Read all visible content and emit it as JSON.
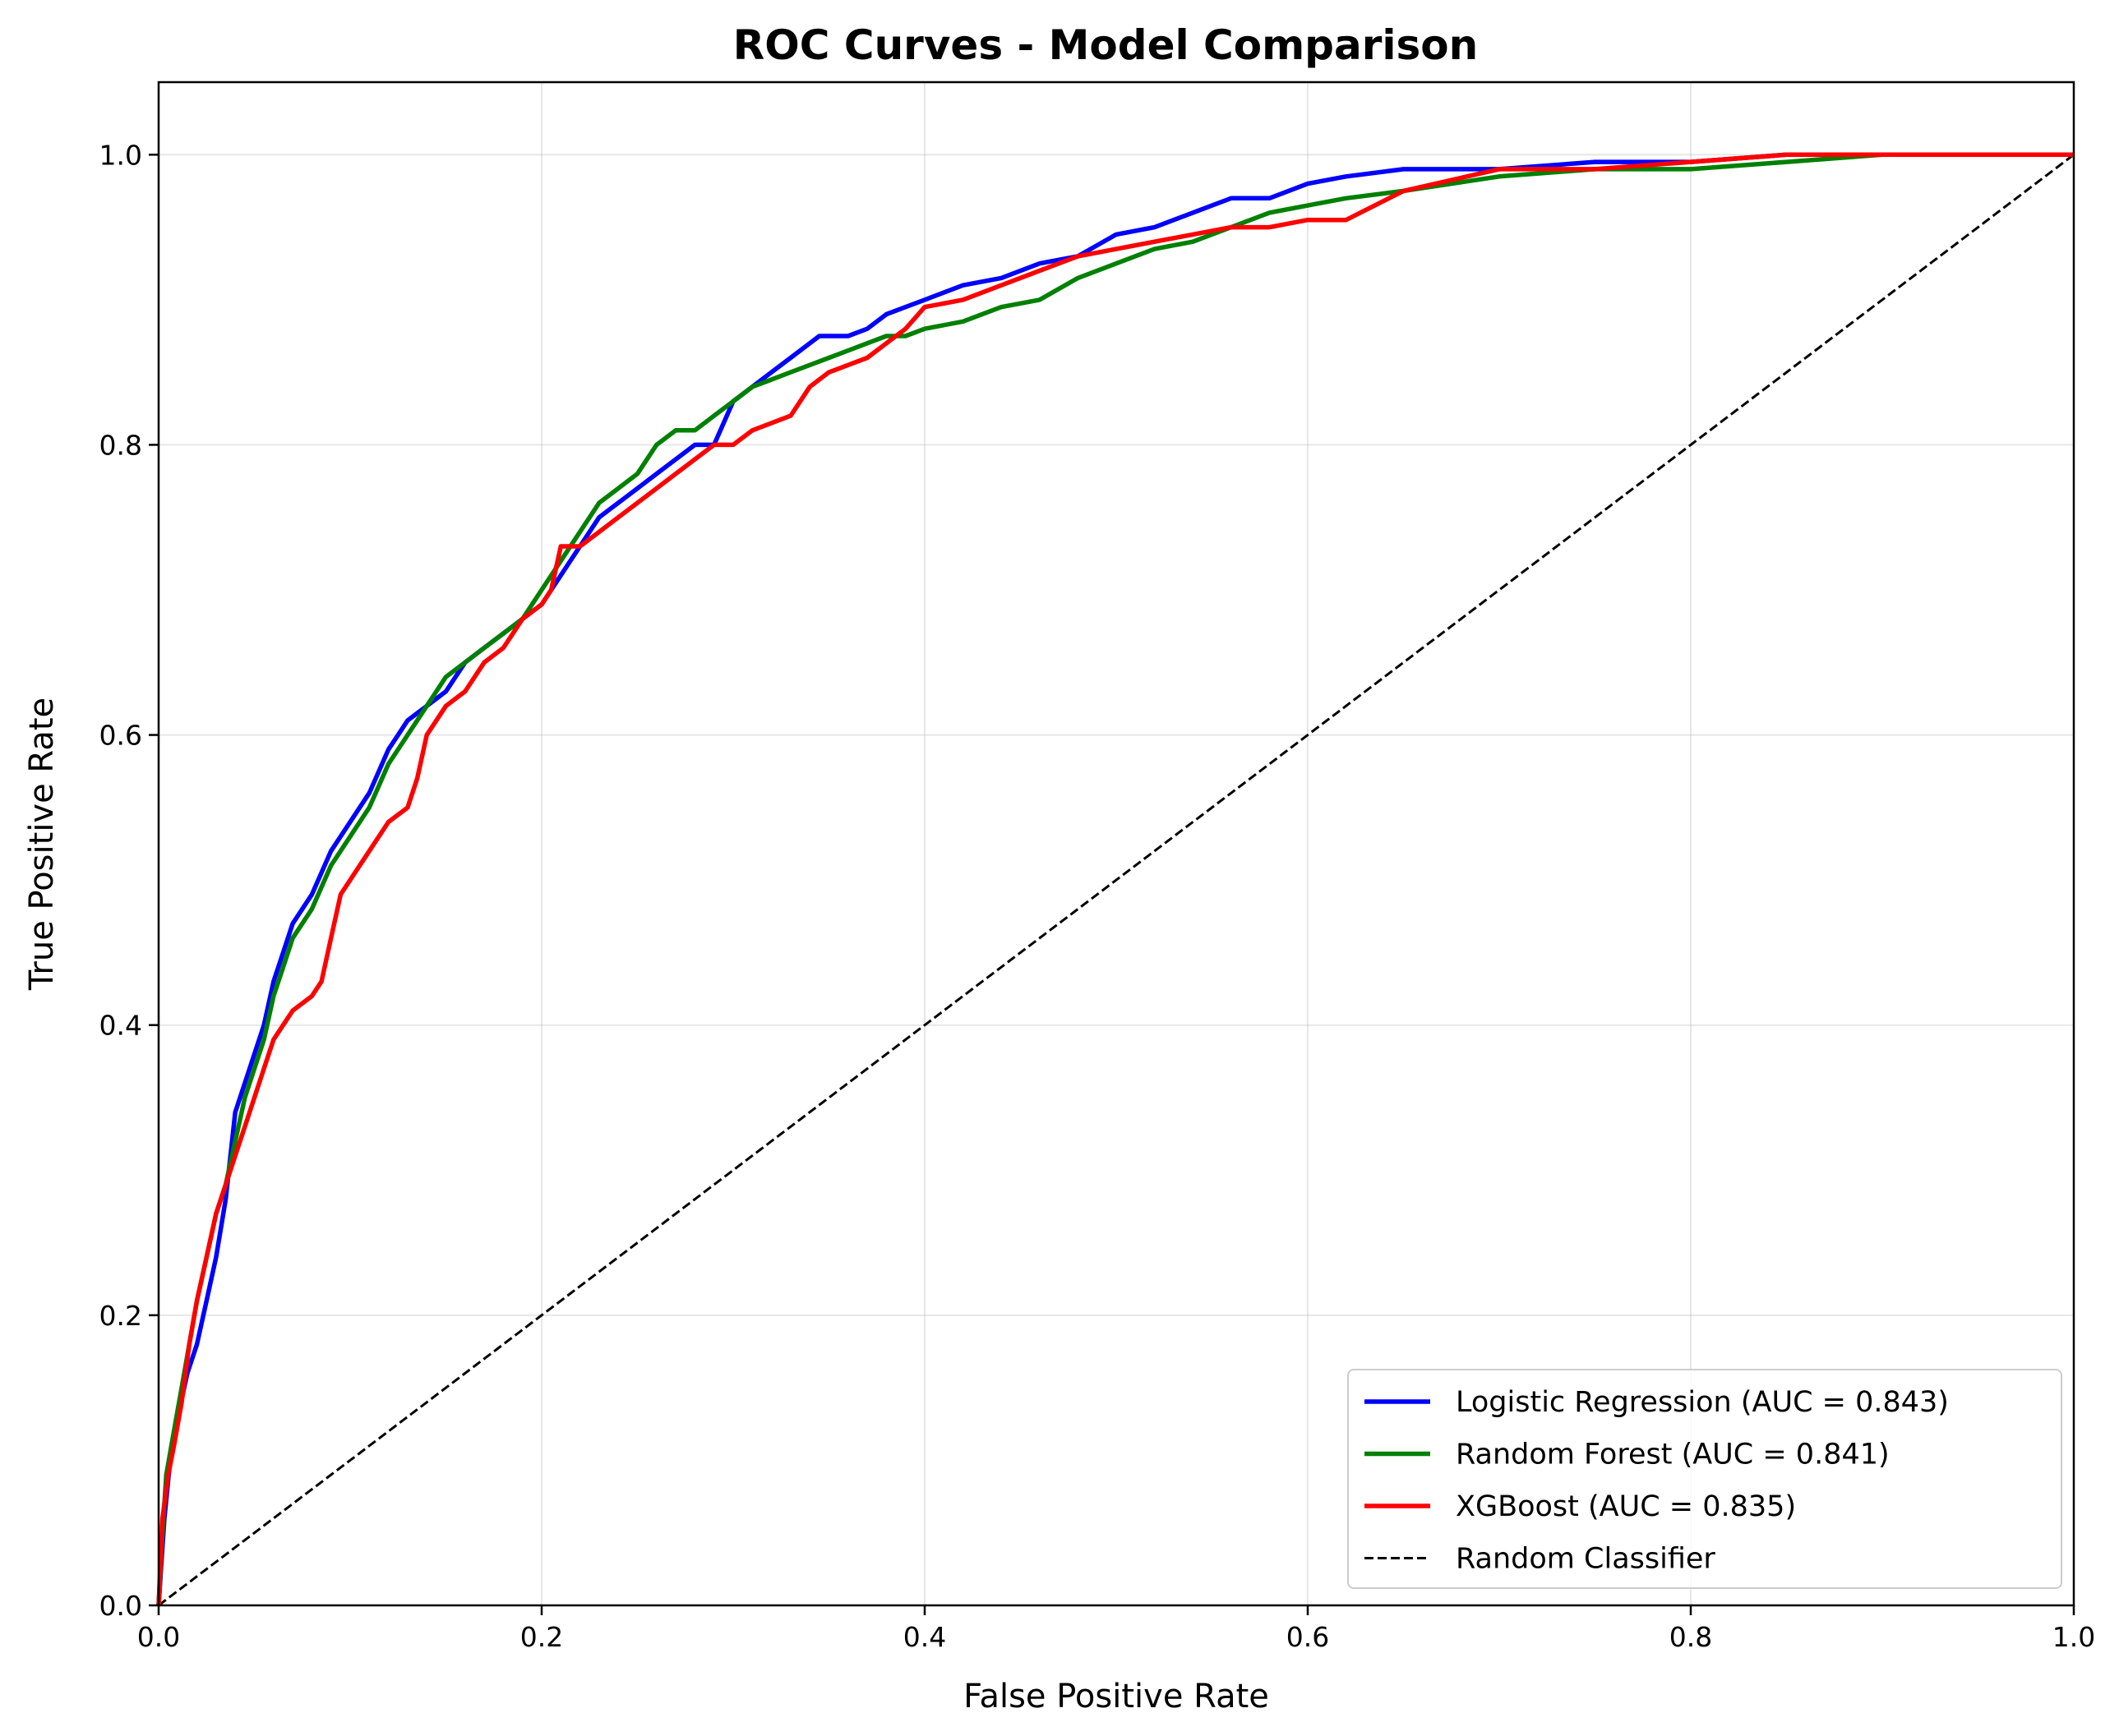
{
  "chart_data": {
    "type": "line",
    "title": "ROC Curves - Model Comparison",
    "xlabel": "False Positive Rate",
    "ylabel": "True Positive Rate",
    "xlim": [
      0.0,
      1.0
    ],
    "ylim": [
      0.0,
      1.05
    ],
    "grid": true,
    "legend_position": "lower-right",
    "x_ticks": [
      0.0,
      0.2,
      0.4,
      0.6,
      0.8,
      1.0
    ],
    "y_ticks": [
      0.0,
      0.2,
      0.4,
      0.6,
      0.8,
      1.0
    ],
    "x_tick_labels": [
      "0.0",
      "0.2",
      "0.4",
      "0.6",
      "0.8",
      "1.0"
    ],
    "y_tick_labels": [
      "0.0",
      "0.2",
      "0.4",
      "0.6",
      "0.8",
      "1.0"
    ],
    "series": [
      {
        "name": "Logistic Regression (AUC = 0.843)",
        "color": "#0000ff",
        "style": "solid",
        "auc": 0.843,
        "x": [
          0,
          0.001,
          0.003,
          0.006,
          0.01,
          0.015,
          0.02,
          0.025,
          0.03,
          0.035,
          0.04,
          0.045,
          0.05,
          0.055,
          0.06,
          0.065,
          0.07,
          0.08,
          0.09,
          0.1,
          0.11,
          0.12,
          0.125,
          0.13,
          0.14,
          0.15,
          0.16,
          0.17,
          0.18,
          0.19,
          0.2,
          0.21,
          0.22,
          0.23,
          0.24,
          0.25,
          0.26,
          0.27,
          0.28,
          0.29,
          0.3,
          0.31,
          0.32,
          0.33,
          0.34,
          0.345,
          0.36,
          0.37,
          0.38,
          0.39,
          0.4,
          0.42,
          0.44,
          0.46,
          0.48,
          0.5,
          0.52,
          0.54,
          0.56,
          0.58,
          0.6,
          0.62,
          0.65,
          0.7,
          0.75,
          0.8,
          0.85,
          0.9,
          0.95,
          1.0
        ],
        "y": [
          0,
          0.02,
          0.06,
          0.1,
          0.13,
          0.16,
          0.18,
          0.21,
          0.24,
          0.28,
          0.34,
          0.36,
          0.38,
          0.4,
          0.43,
          0.45,
          0.47,
          0.49,
          0.52,
          0.54,
          0.56,
          0.59,
          0.6,
          0.61,
          0.62,
          0.63,
          0.65,
          0.66,
          0.67,
          0.68,
          0.69,
          0.71,
          0.73,
          0.75,
          0.76,
          0.77,
          0.78,
          0.79,
          0.8,
          0.8,
          0.83,
          0.84,
          0.85,
          0.86,
          0.87,
          0.875,
          0.875,
          0.88,
          0.89,
          0.895,
          0.9,
          0.91,
          0.915,
          0.925,
          0.93,
          0.945,
          0.95,
          0.96,
          0.97,
          0.97,
          0.98,
          0.985,
          0.99,
          0.99,
          0.995,
          0.995,
          1.0,
          1.0,
          1.0,
          1.0
        ]
      },
      {
        "name": "Random Forest (AUC = 0.841)",
        "color": "#008000",
        "style": "solid",
        "auc": 0.841,
        "x": [
          0,
          0.002,
          0.004,
          0.008,
          0.012,
          0.016,
          0.02,
          0.025,
          0.03,
          0.035,
          0.04,
          0.045,
          0.05,
          0.055,
          0.06,
          0.065,
          0.07,
          0.08,
          0.09,
          0.1,
          0.11,
          0.12,
          0.13,
          0.14,
          0.15,
          0.16,
          0.17,
          0.18,
          0.19,
          0.2,
          0.21,
          0.22,
          0.23,
          0.24,
          0.25,
          0.26,
          0.27,
          0.28,
          0.29,
          0.3,
          0.31,
          0.32,
          0.33,
          0.34,
          0.35,
          0.36,
          0.37,
          0.38,
          0.39,
          0.4,
          0.42,
          0.44,
          0.46,
          0.48,
          0.5,
          0.52,
          0.54,
          0.56,
          0.58,
          0.6,
          0.62,
          0.65,
          0.7,
          0.75,
          0.8,
          0.85,
          0.9,
          0.95,
          1.0
        ],
        "y": [
          0,
          0.05,
          0.09,
          0.12,
          0.15,
          0.18,
          0.21,
          0.24,
          0.27,
          0.29,
          0.32,
          0.35,
          0.37,
          0.39,
          0.42,
          0.44,
          0.46,
          0.48,
          0.51,
          0.53,
          0.55,
          0.58,
          0.6,
          0.62,
          0.64,
          0.65,
          0.66,
          0.67,
          0.68,
          0.7,
          0.72,
          0.74,
          0.76,
          0.77,
          0.78,
          0.8,
          0.81,
          0.81,
          0.82,
          0.83,
          0.84,
          0.845,
          0.85,
          0.855,
          0.86,
          0.865,
          0.87,
          0.875,
          0.875,
          0.88,
          0.885,
          0.895,
          0.9,
          0.915,
          0.925,
          0.935,
          0.94,
          0.95,
          0.96,
          0.965,
          0.97,
          0.975,
          0.985,
          0.99,
          0.99,
          0.995,
          1.0,
          1.0,
          1.0
        ]
      },
      {
        "name": "XGBoost (AUC = 0.835)",
        "color": "#ff0000",
        "style": "solid",
        "auc": 0.835,
        "x": [
          0,
          0.002,
          0.005,
          0.008,
          0.012,
          0.016,
          0.02,
          0.025,
          0.03,
          0.035,
          0.04,
          0.045,
          0.05,
          0.055,
          0.06,
          0.065,
          0.07,
          0.08,
          0.085,
          0.09,
          0.095,
          0.1,
          0.11,
          0.12,
          0.13,
          0.135,
          0.14,
          0.15,
          0.16,
          0.17,
          0.18,
          0.19,
          0.2,
          0.205,
          0.21,
          0.22,
          0.23,
          0.24,
          0.25,
          0.26,
          0.27,
          0.28,
          0.29,
          0.3,
          0.31,
          0.32,
          0.33,
          0.34,
          0.35,
          0.36,
          0.37,
          0.38,
          0.39,
          0.4,
          0.42,
          0.44,
          0.46,
          0.48,
          0.5,
          0.52,
          0.54,
          0.56,
          0.58,
          0.6,
          0.62,
          0.65,
          0.7,
          0.75,
          0.8,
          0.85,
          0.9,
          0.95,
          1.0
        ],
        "y": [
          0,
          0.06,
          0.09,
          0.11,
          0.14,
          0.18,
          0.21,
          0.24,
          0.27,
          0.29,
          0.31,
          0.33,
          0.35,
          0.37,
          0.39,
          0.4,
          0.41,
          0.42,
          0.43,
          0.46,
          0.49,
          0.5,
          0.52,
          0.54,
          0.55,
          0.57,
          0.6,
          0.62,
          0.63,
          0.65,
          0.66,
          0.68,
          0.69,
          0.7,
          0.73,
          0.73,
          0.74,
          0.75,
          0.76,
          0.77,
          0.78,
          0.79,
          0.8,
          0.8,
          0.81,
          0.815,
          0.82,
          0.84,
          0.85,
          0.855,
          0.86,
          0.87,
          0.88,
          0.895,
          0.9,
          0.91,
          0.92,
          0.93,
          0.935,
          0.94,
          0.945,
          0.95,
          0.95,
          0.955,
          0.955,
          0.975,
          0.99,
          0.99,
          0.995,
          1.0,
          1.0,
          1.0,
          1.0
        ]
      },
      {
        "name": "Random Classifier",
        "color": "#000000",
        "style": "dashed",
        "x": [
          0,
          1
        ],
        "y": [
          0,
          1
        ]
      }
    ]
  }
}
